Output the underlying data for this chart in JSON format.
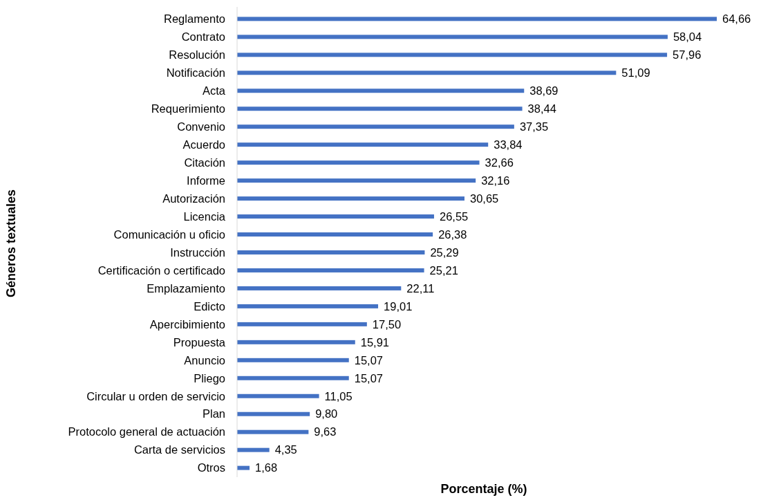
{
  "chart_data": {
    "type": "bar",
    "orientation": "horizontal",
    "xlabel": "Porcentaje (%)",
    "ylabel": "Géneros textuales",
    "categories": [
      "Reglamento",
      "Contrato",
      "Resolución",
      "Notificación",
      "Acta",
      "Requerimiento",
      "Convenio",
      "Acuerdo",
      "Citación",
      "Informe",
      "Autorización",
      "Licencia",
      "Comunicación u oficio",
      "Instrucción",
      "Certificación o certificado",
      "Emplazamiento",
      "Edicto",
      "Apercibimiento",
      "Propuesta",
      "Anuncio",
      "Pliego",
      "Circular u orden de servicio",
      "Plan",
      "Protocolo general de actuación",
      "Carta de servicios",
      "Otros"
    ],
    "values": [
      64.66,
      58.04,
      57.96,
      51.09,
      38.69,
      38.44,
      37.35,
      33.84,
      32.66,
      32.16,
      30.65,
      26.55,
      26.38,
      25.29,
      25.21,
      22.11,
      19.01,
      17.5,
      15.91,
      15.07,
      15.07,
      11.05,
      9.8,
      9.63,
      4.35,
      1.68
    ],
    "value_labels": [
      "64,66",
      "58,04",
      "57,96",
      "51,09",
      "38,69",
      "38,44",
      "37,35",
      "33,84",
      "32,66",
      "32,16",
      "30,65",
      "26,55",
      "26,38",
      "25,29",
      "25,21",
      "22,11",
      "19,01",
      "17,50",
      "15,91",
      "15,07",
      "15,07",
      "11,05",
      "9,80",
      "9,63",
      "4,35",
      "1,68"
    ],
    "color": "#4472c4"
  }
}
